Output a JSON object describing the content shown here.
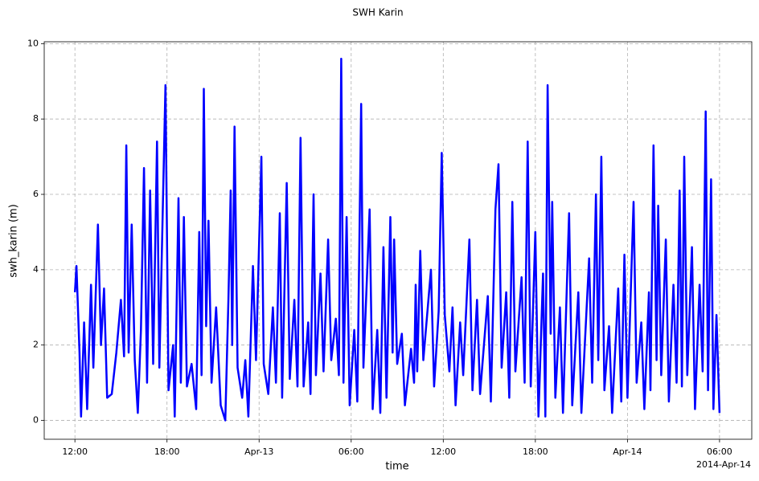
{
  "chart_data": {
    "type": "line",
    "title": "SWH Karin",
    "x_label": "time",
    "y_label": "swh_karin (m)",
    "x_offset_label": "2014-Apr-14",
    "grid": true,
    "xlim": [
      -2,
      44.1
    ],
    "ylim": [
      -0.5,
      10.05
    ],
    "xticks": [
      {
        "value": 0,
        "label": "12:00"
      },
      {
        "value": 6,
        "label": "18:00"
      },
      {
        "value": 12,
        "label": "Apr-13"
      },
      {
        "value": 18,
        "label": "06:00"
      },
      {
        "value": 24,
        "label": "12:00"
      },
      {
        "value": 30,
        "label": "18:00"
      },
      {
        "value": 36,
        "label": "Apr-14"
      },
      {
        "value": 42,
        "label": "06:00"
      }
    ],
    "yticks": [
      0,
      2,
      4,
      6,
      8,
      10
    ],
    "x": [
      0.0,
      0.1,
      0.3,
      0.4,
      0.6,
      0.8,
      1.05,
      1.2,
      1.5,
      1.7,
      1.9,
      2.1,
      2.4,
      2.7,
      3.0,
      3.2,
      3.35,
      3.5,
      3.7,
      3.9,
      4.1,
      4.3,
      4.5,
      4.7,
      4.9,
      5.1,
      5.35,
      5.5,
      5.9,
      6.1,
      6.4,
      6.5,
      6.75,
      6.9,
      7.1,
      7.3,
      7.6,
      7.9,
      8.1,
      8.25,
      8.4,
      8.55,
      8.7,
      8.9,
      9.2,
      9.5,
      9.8,
      10.0,
      10.15,
      10.25,
      10.4,
      10.6,
      10.9,
      11.1,
      11.3,
      11.6,
      11.8,
      12.15,
      12.3,
      12.6,
      12.9,
      13.1,
      13.35,
      13.5,
      13.8,
      14.0,
      14.3,
      14.5,
      14.7,
      14.9,
      15.2,
      15.35,
      15.55,
      15.7,
      16.0,
      16.2,
      16.5,
      16.7,
      17.0,
      17.2,
      17.35,
      17.5,
      17.7,
      17.9,
      18.2,
      18.4,
      18.65,
      18.8,
      19.2,
      19.4,
      19.7,
      19.9,
      20.1,
      20.3,
      20.55,
      20.7,
      20.8,
      21.0,
      21.3,
      21.5,
      21.9,
      22.1,
      22.2,
      22.3,
      22.5,
      22.7,
      23.2,
      23.4,
      23.7,
      23.9,
      24.1,
      24.4,
      24.6,
      24.8,
      25.1,
      25.3,
      25.7,
      25.9,
      26.2,
      26.4,
      26.9,
      27.1,
      27.4,
      27.6,
      27.8,
      28.1,
      28.3,
      28.5,
      28.7,
      29.1,
      29.3,
      29.5,
      29.7,
      30.0,
      30.2,
      30.5,
      30.65,
      30.8,
      31.0,
      31.1,
      31.3,
      31.6,
      31.8,
      32.2,
      32.4,
      32.8,
      33.0,
      33.5,
      33.7,
      33.95,
      34.1,
      34.3,
      34.5,
      34.8,
      35.0,
      35.4,
      35.6,
      35.8,
      36.0,
      36.4,
      36.6,
      36.9,
      37.1,
      37.4,
      37.5,
      37.7,
      37.9,
      38.0,
      38.2,
      38.5,
      38.7,
      39.0,
      39.2,
      39.4,
      39.55,
      39.7,
      39.9,
      40.2,
      40.4,
      40.7,
      40.9,
      41.1,
      41.25,
      41.45,
      41.6,
      41.8,
      42.0
    ],
    "series": [
      {
        "name": "swh_karin",
        "color": "#0000ff",
        "values": [
          3.4,
          4.1,
          1.8,
          0.1,
          2.6,
          0.3,
          3.6,
          1.4,
          5.2,
          2.0,
          3.5,
          0.6,
          0.7,
          1.8,
          3.2,
          1.7,
          7.3,
          1.8,
          5.2,
          1.6,
          0.2,
          2.4,
          6.7,
          1.0,
          6.1,
          1.5,
          7.4,
          1.4,
          8.9,
          0.8,
          2.0,
          0.1,
          5.9,
          1.0,
          5.4,
          0.9,
          1.5,
          0.3,
          5.0,
          1.2,
          8.8,
          2.5,
          5.3,
          1.0,
          3.0,
          0.4,
          0.0,
          3.2,
          6.1,
          2.0,
          7.8,
          1.4,
          0.6,
          1.6,
          0.1,
          4.1,
          1.6,
          7.0,
          1.5,
          0.7,
          3.0,
          1.0,
          5.5,
          0.6,
          6.3,
          1.1,
          3.2,
          0.9,
          7.5,
          0.9,
          2.6,
          0.7,
          6.0,
          1.2,
          3.9,
          1.3,
          4.8,
          1.6,
          2.7,
          1.2,
          9.6,
          1.0,
          5.4,
          0.4,
          2.4,
          0.5,
          8.4,
          1.4,
          5.6,
          0.3,
          2.4,
          0.2,
          4.6,
          0.6,
          5.4,
          1.8,
          4.8,
          1.5,
          2.3,
          0.4,
          1.9,
          1.0,
          3.6,
          1.3,
          4.5,
          1.6,
          4.0,
          0.9,
          2.9,
          7.1,
          2.8,
          1.3,
          3.0,
          0.4,
          2.6,
          1.2,
          4.8,
          0.8,
          3.2,
          0.7,
          3.3,
          0.5,
          5.6,
          6.8,
          1.4,
          3.4,
          0.6,
          5.8,
          1.3,
          3.8,
          1.0,
          7.4,
          0.9,
          5.0,
          0.1,
          3.9,
          0.1,
          8.9,
          2.3,
          5.8,
          0.6,
          3.0,
          0.2,
          5.5,
          0.4,
          3.4,
          0.2,
          4.3,
          1.0,
          6.0,
          1.6,
          7.0,
          0.8,
          2.5,
          0.2,
          3.5,
          0.5,
          4.4,
          0.6,
          5.8,
          1.0,
          2.6,
          0.3,
          3.4,
          0.8,
          7.3,
          1.6,
          5.7,
          1.2,
          4.8,
          0.5,
          3.6,
          1.0,
          6.1,
          0.9,
          7.0,
          1.2,
          4.6,
          0.3,
          3.6,
          1.3,
          8.2,
          0.8,
          6.4,
          0.3,
          2.8,
          0.2
        ]
      }
    ]
  }
}
